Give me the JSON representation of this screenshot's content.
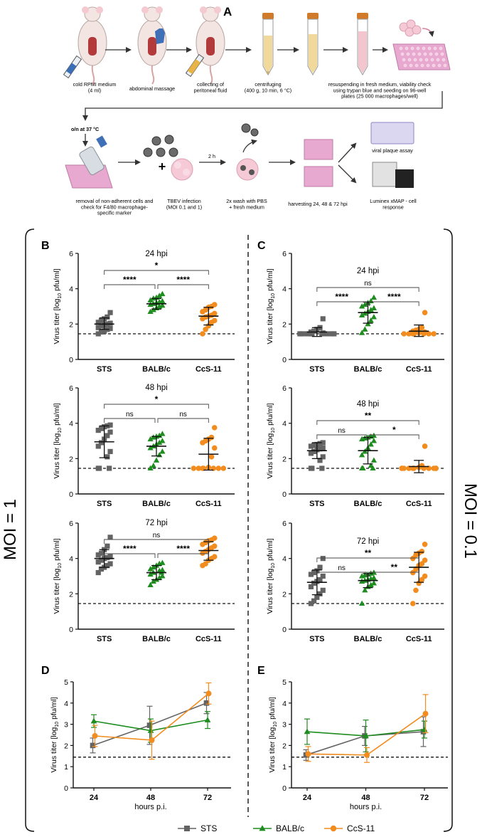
{
  "panel_letters": {
    "A": "A",
    "B": "B",
    "C": "C",
    "D": "D",
    "E": "E"
  },
  "colors": {
    "STS": "#636363",
    "BALB/c": "#1f8c1f",
    "CcS-11": "#f28c1e",
    "ink": "#111111",
    "plate": "#e7a9cf",
    "tube_cap": "#d07a2a",
    "tube_fill": "#f1d89b"
  },
  "workflow": {
    "steps_row1": [
      {
        "label": "cold RPMI medium\n(4 ml)"
      },
      {
        "label": "abdominal massage"
      },
      {
        "label": "collecting of\nperitoneal fluid"
      },
      {
        "label": "centrifuging\n(400 g, 10 min, 6 °C)"
      },
      {
        "label": "resuspending in fresh medium, viability check\nusing trypan blue and seeding on 96-well\nplates (25 000 macrophages/well)"
      }
    ],
    "incubation": "o/n at 37 °C",
    "arrow_time": "2 h",
    "steps_row2": [
      {
        "label": "removal of non-adherent cells and\ncheck for F4/80 macrophage-\nspecific marker"
      },
      {
        "label": "TBEV infection\n(MOI 0.1 and 1)"
      },
      {
        "label": "2x wash with PBS\n+ fresh medium"
      },
      {
        "label": "harvesting 24, 48 & 72 hpi"
      }
    ],
    "outputs": [
      {
        "label": "viral plaque assay"
      },
      {
        "label": "Luminex xMAP - cell\nresponse"
      }
    ]
  },
  "moi_labels": {
    "left": "MOI = 1",
    "right": "MOI = 0.1"
  },
  "legend": {
    "items": [
      "STS",
      "BALB/c",
      "CcS-11"
    ]
  },
  "chart_data": [
    {
      "id": "B-24",
      "panel": "B",
      "type": "scatter",
      "title": "24 hpi",
      "ylabel": "Virus titer [log10 pfu/ml]",
      "ylim": [
        0,
        6
      ],
      "yticks": [
        0,
        2,
        4,
        6
      ],
      "categories": [
        "STS",
        "BALB/c",
        "CcS-11"
      ],
      "detection_limit": 1.45,
      "series": [
        {
          "name": "STS",
          "marker": "square",
          "mean": 2.0,
          "sd_low": 1.7,
          "sd_high": 2.35,
          "values": [
            1.45,
            1.55,
            1.6,
            1.7,
            1.75,
            1.8,
            1.9,
            1.95,
            2.0,
            2.05,
            2.1,
            2.2,
            2.3,
            2.4,
            2.65
          ]
        },
        {
          "name": "BALB/c",
          "marker": "triangle",
          "mean": 3.15,
          "sd_low": 2.85,
          "sd_high": 3.45,
          "values": [
            2.7,
            2.8,
            2.9,
            3.0,
            3.05,
            3.1,
            3.15,
            3.2,
            3.25,
            3.3,
            3.35,
            3.45,
            3.5,
            3.6,
            3.7
          ]
        },
        {
          "name": "CcS-11",
          "marker": "circle",
          "mean": 2.45,
          "sd_low": 1.95,
          "sd_high": 2.95,
          "values": [
            1.45,
            1.7,
            1.9,
            2.1,
            2.2,
            2.3,
            2.4,
            2.45,
            2.5,
            2.6,
            2.7,
            2.8,
            2.95,
            3.0,
            3.1
          ]
        }
      ],
      "comparisons": [
        {
          "from": 0,
          "to": 1,
          "label": "****",
          "level": 1
        },
        {
          "from": 1,
          "to": 2,
          "label": "****",
          "level": 1
        },
        {
          "from": 0,
          "to": 2,
          "label": "*",
          "level": 2
        }
      ]
    },
    {
      "id": "B-48",
      "panel": "B",
      "type": "scatter",
      "title": "48 hpi",
      "ylabel": "Virus titer [log10 pfu/ml]",
      "ylim": [
        0,
        6
      ],
      "yticks": [
        0,
        2,
        4,
        6
      ],
      "categories": [
        "STS",
        "BALB/c",
        "CcS-11"
      ],
      "detection_limit": 1.45,
      "series": [
        {
          "name": "STS",
          "marker": "square",
          "mean": 2.95,
          "sd_low": 2.05,
          "sd_high": 3.85,
          "values": [
            1.45,
            1.45,
            1.45,
            2.1,
            2.4,
            2.7,
            2.9,
            3.1,
            3.3,
            3.5,
            3.6,
            3.7,
            3.8,
            3.85,
            3.9
          ]
        },
        {
          "name": "BALB/c",
          "marker": "triangle",
          "mean": 2.7,
          "sd_low": 2.15,
          "sd_high": 3.25,
          "values": [
            1.45,
            1.6,
            1.9,
            2.2,
            2.4,
            2.6,
            2.7,
            2.8,
            2.9,
            3.0,
            3.1,
            3.2,
            3.25,
            3.3,
            3.4
          ]
        },
        {
          "name": "CcS-11",
          "marker": "circle",
          "mean": 2.25,
          "sd_low": 1.35,
          "sd_high": 3.15,
          "values": [
            1.45,
            1.45,
            1.45,
            1.45,
            1.45,
            1.45,
            1.45,
            1.5,
            2.1,
            2.6,
            2.9,
            3.0,
            3.1,
            3.2,
            3.75
          ]
        }
      ],
      "comparisons": [
        {
          "from": 0,
          "to": 1,
          "label": "ns",
          "level": 1
        },
        {
          "from": 1,
          "to": 2,
          "label": "ns",
          "level": 1
        },
        {
          "from": 0,
          "to": 2,
          "label": "*",
          "level": 2
        }
      ]
    },
    {
      "id": "B-72",
      "panel": "B",
      "type": "scatter",
      "title": "72 hpi",
      "ylabel": "Virus titer [log10 pfu/ml]",
      "ylim": [
        0,
        6
      ],
      "yticks": [
        0,
        2,
        4,
        6
      ],
      "categories": [
        "STS",
        "BALB/c",
        "CcS-11"
      ],
      "detection_limit": 1.45,
      "series": [
        {
          "name": "STS",
          "marker": "square",
          "mean": 4.0,
          "sd_low": 3.5,
          "sd_high": 4.5,
          "values": [
            3.2,
            3.4,
            3.5,
            3.6,
            3.7,
            3.8,
            3.9,
            4.0,
            4.05,
            4.1,
            4.2,
            4.3,
            4.5,
            4.7,
            5.2
          ]
        },
        {
          "name": "BALB/c",
          "marker": "triangle",
          "mean": 3.2,
          "sd_low": 2.8,
          "sd_high": 3.6,
          "values": [
            2.5,
            2.7,
            2.8,
            2.9,
            3.0,
            3.1,
            3.2,
            3.2,
            3.3,
            3.35,
            3.4,
            3.5,
            3.6,
            3.7,
            3.75
          ]
        },
        {
          "name": "CcS-11",
          "marker": "circle",
          "mean": 4.45,
          "sd_low": 3.9,
          "sd_high": 4.95,
          "values": [
            3.6,
            3.7,
            3.9,
            4.0,
            4.1,
            4.3,
            4.4,
            4.5,
            4.6,
            4.7,
            4.8,
            4.9,
            5.0,
            5.05,
            5.15
          ]
        }
      ],
      "comparisons": [
        {
          "from": 0,
          "to": 1,
          "label": "****",
          "level": 1
        },
        {
          "from": 1,
          "to": 2,
          "label": "****",
          "level": 1
        },
        {
          "from": 0,
          "to": 2,
          "label": "ns",
          "level": 2
        }
      ]
    },
    {
      "id": "C-24",
      "panel": "C",
      "type": "scatter",
      "title": "24 hpi",
      "ylabel": "Virus titer [log10 pfu/ml]",
      "ylim": [
        0,
        6
      ],
      "yticks": [
        0,
        2,
        4,
        6
      ],
      "categories": [
        "STS",
        "BALB/c",
        "CcS-11"
      ],
      "detection_limit": 1.45,
      "series": [
        {
          "name": "STS",
          "marker": "square",
          "mean": 1.55,
          "sd_low": 1.3,
          "sd_high": 1.8,
          "values": [
            1.45,
            1.45,
            1.45,
            1.45,
            1.45,
            1.45,
            1.45,
            1.45,
            1.45,
            1.5,
            1.55,
            1.6,
            1.7,
            1.8,
            2.3
          ]
        },
        {
          "name": "BALB/c",
          "marker": "triangle",
          "mean": 2.65,
          "sd_low": 2.05,
          "sd_high": 3.25,
          "values": [
            1.5,
            1.7,
            2.0,
            2.2,
            2.4,
            2.5,
            2.6,
            2.7,
            2.8,
            2.9,
            3.0,
            3.1,
            3.2,
            3.3,
            3.5
          ]
        },
        {
          "name": "CcS-11",
          "marker": "circle",
          "mean": 1.6,
          "sd_low": 1.3,
          "sd_high": 1.95,
          "values": [
            1.45,
            1.45,
            1.45,
            1.45,
            1.45,
            1.45,
            1.45,
            1.5,
            1.5,
            1.55,
            1.6,
            1.65,
            1.7,
            1.8,
            2.65
          ]
        }
      ],
      "comparisons": [
        {
          "from": 0,
          "to": 1,
          "label": "****",
          "level": 1
        },
        {
          "from": 1,
          "to": 2,
          "label": "****",
          "level": 1
        },
        {
          "from": 0,
          "to": 2,
          "label": "ns",
          "level": 2
        }
      ]
    },
    {
      "id": "C-48",
      "panel": "C",
      "type": "scatter",
      "title": "48 hpi",
      "ylabel": "Virus titer [log10 pfu/ml]",
      "ylim": [
        0,
        6
      ],
      "yticks": [
        0,
        2,
        4,
        6
      ],
      "categories": [
        "STS",
        "BALB/c",
        "CcS-11"
      ],
      "detection_limit": 1.45,
      "series": [
        {
          "name": "STS",
          "marker": "square",
          "mean": 2.45,
          "sd_low": 2.0,
          "sd_high": 2.9,
          "values": [
            1.45,
            1.45,
            1.45,
            1.9,
            2.1,
            2.3,
            2.4,
            2.5,
            2.55,
            2.6,
            2.7,
            2.75,
            2.8,
            2.85,
            2.9
          ]
        },
        {
          "name": "BALB/c",
          "marker": "triangle",
          "mean": 2.45,
          "sd_low": 1.7,
          "sd_high": 3.2,
          "values": [
            1.45,
            1.45,
            1.45,
            1.6,
            1.9,
            2.2,
            2.4,
            2.6,
            2.8,
            3.0,
            3.1,
            3.15,
            3.2,
            3.25,
            3.3
          ]
        },
        {
          "name": "CcS-11",
          "marker": "circle",
          "mean": 1.55,
          "sd_low": 1.2,
          "sd_high": 1.9,
          "values": [
            1.45,
            1.45,
            1.45,
            1.45,
            1.45,
            1.45,
            1.45,
            1.45,
            1.45,
            1.45,
            1.45,
            1.45,
            1.5,
            1.6,
            2.7
          ]
        }
      ],
      "comparisons": [
        {
          "from": 0,
          "to": 1,
          "label": "ns",
          "level": 1
        },
        {
          "from": 1,
          "to": 2,
          "label": "*",
          "level": 1
        },
        {
          "from": 0,
          "to": 2,
          "label": "**",
          "level": 2
        }
      ]
    },
    {
      "id": "C-72",
      "panel": "C",
      "type": "scatter",
      "title": "72 hpi",
      "ylabel": "Virus titer [log10 pfu/ml]",
      "ylim": [
        0,
        6
      ],
      "yticks": [
        0,
        2,
        4,
        6
      ],
      "categories": [
        "STS",
        "BALB/c",
        "CcS-11"
      ],
      "detection_limit": 1.45,
      "series": [
        {
          "name": "STS",
          "marker": "square",
          "mean": 2.65,
          "sd_low": 1.95,
          "sd_high": 3.35,
          "values": [
            1.45,
            1.6,
            1.8,
            2.0,
            2.2,
            2.4,
            2.6,
            2.7,
            2.8,
            3.0,
            3.1,
            3.2,
            3.3,
            3.5,
            4.0
          ]
        },
        {
          "name": "BALB/c",
          "marker": "triangle",
          "mean": 2.75,
          "sd_low": 2.35,
          "sd_high": 3.15,
          "values": [
            1.45,
            2.2,
            2.4,
            2.5,
            2.6,
            2.7,
            2.75,
            2.8,
            2.85,
            2.9,
            3.0,
            3.05,
            3.1,
            3.15,
            3.2
          ]
        },
        {
          "name": "CcS-11",
          "marker": "circle",
          "mean": 3.5,
          "sd_low": 2.65,
          "sd_high": 4.35,
          "values": [
            1.45,
            2.2,
            2.6,
            2.8,
            3.0,
            3.2,
            3.4,
            3.6,
            3.7,
            3.9,
            4.0,
            4.2,
            4.3,
            4.4,
            4.8
          ]
        }
      ],
      "comparisons": [
        {
          "from": 0,
          "to": 1,
          "label": "ns",
          "level": 1
        },
        {
          "from": 1,
          "to": 2,
          "label": "**",
          "level": 1
        },
        {
          "from": 0,
          "to": 2,
          "label": "**",
          "level": 2
        }
      ]
    },
    {
      "id": "D",
      "panel": "D",
      "type": "line",
      "title": "",
      "ylabel": "Virus titer [log10 pfu/ml]",
      "xlabel": "hours p.i.",
      "x": [
        24,
        48,
        72
      ],
      "xticks": [
        24,
        48,
        72
      ],
      "ylim": [
        0,
        5
      ],
      "yticks": [
        0,
        1,
        2,
        3,
        4,
        5
      ],
      "detection_limit": 1.45,
      "series": [
        {
          "name": "STS",
          "marker": "square",
          "values": [
            2.0,
            2.95,
            4.0
          ],
          "sd": [
            0.35,
            0.9,
            0.5
          ]
        },
        {
          "name": "BALB/c",
          "marker": "triangle",
          "values": [
            3.15,
            2.7,
            3.2
          ],
          "sd": [
            0.3,
            0.55,
            0.4
          ]
        },
        {
          "name": "CcS-11",
          "marker": "circle",
          "values": [
            2.45,
            2.25,
            4.45
          ],
          "sd": [
            0.5,
            0.9,
            0.5
          ]
        }
      ]
    },
    {
      "id": "E",
      "panel": "E",
      "type": "line",
      "title": "",
      "ylabel": "Virus titer [log10 pfu/ml]",
      "xlabel": "hours p.i.",
      "x": [
        24,
        48,
        72
      ],
      "xticks": [
        24,
        48,
        72
      ],
      "ylim": [
        0,
        5
      ],
      "yticks": [
        0,
        1,
        2,
        3,
        4,
        5
      ],
      "detection_limit": 1.45,
      "series": [
        {
          "name": "STS",
          "marker": "square",
          "values": [
            1.55,
            2.45,
            2.65
          ],
          "sd": [
            0.25,
            0.45,
            0.7
          ]
        },
        {
          "name": "BALB/c",
          "marker": "triangle",
          "values": [
            2.65,
            2.45,
            2.75
          ],
          "sd": [
            0.6,
            0.75,
            0.4
          ]
        },
        {
          "name": "CcS-11",
          "marker": "circle",
          "values": [
            1.6,
            1.55,
            3.5
          ],
          "sd": [
            0.35,
            0.35,
            0.9
          ]
        }
      ]
    }
  ]
}
